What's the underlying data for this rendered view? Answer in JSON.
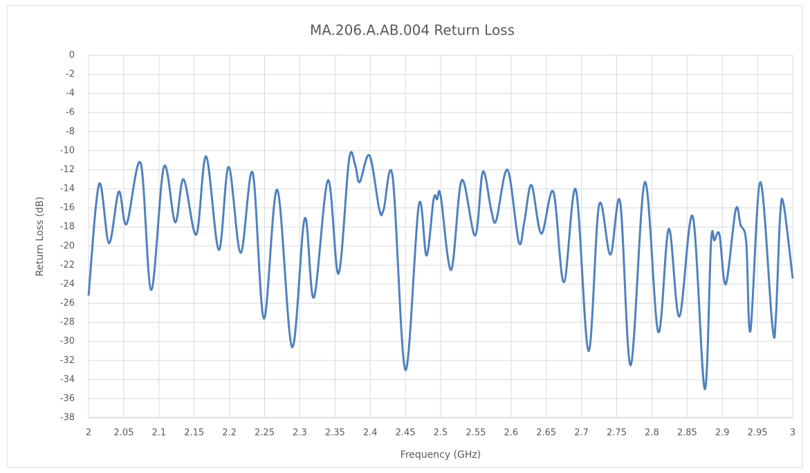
{
  "chart_data": {
    "type": "line",
    "title": "MA.206.A.AB.004 Return Loss",
    "xlabel": "Frequency (GHz)",
    "ylabel": "Return Loss (dB)",
    "x": [
      2.0,
      2.015,
      2.029,
      2.043,
      2.054,
      2.074,
      2.089,
      2.107,
      2.123,
      2.135,
      2.153,
      2.167,
      2.185,
      2.199,
      2.216,
      2.233,
      2.249,
      2.268,
      2.289,
      2.307,
      2.32,
      2.34,
      2.355,
      2.37,
      2.379,
      2.385,
      2.399,
      2.413,
      2.419,
      2.432,
      2.45,
      2.469,
      2.48,
      2.49,
      2.495,
      2.5,
      2.515,
      2.53,
      2.549,
      2.56,
      2.572,
      2.579,
      2.595,
      2.611,
      2.619,
      2.629,
      2.643,
      2.66,
      2.675,
      2.692,
      2.71,
      2.725,
      2.741,
      2.755,
      2.77,
      2.79,
      2.809,
      2.824,
      2.839,
      2.858,
      2.875,
      2.884,
      2.889,
      2.896,
      2.905,
      2.919,
      2.926,
      2.934,
      2.94,
      2.954,
      2.971,
      2.976,
      2.982,
      2.987,
      3.0
    ],
    "series": [
      {
        "name": "Return Loss",
        "color": "#4f81bd",
        "values": [
          -25.2,
          -13.5,
          -19.7,
          -14.3,
          -17.7,
          -11.3,
          -24.6,
          -11.7,
          -17.5,
          -13.0,
          -18.8,
          -10.6,
          -20.4,
          -11.7,
          -20.7,
          -12.3,
          -27.6,
          -14.1,
          -30.6,
          -17.1,
          -25.4,
          -13.1,
          -22.9,
          -10.9,
          -11.6,
          -13.3,
          -10.5,
          -16.2,
          -16.2,
          -12.8,
          -33.0,
          -15.7,
          -21.0,
          -15.1,
          -15.1,
          -14.7,
          -22.5,
          -13.1,
          -18.9,
          -12.2,
          -16.3,
          -17.3,
          -12.0,
          -19.6,
          -17.4,
          -13.6,
          -18.7,
          -14.3,
          -23.8,
          -14.1,
          -31.0,
          -15.7,
          -20.9,
          -15.4,
          -32.5,
          -13.3,
          -29.0,
          -18.2,
          -27.4,
          -16.9,
          -35.0,
          -19.6,
          -19.4,
          -18.8,
          -24.0,
          -16.2,
          -17.8,
          -19.6,
          -28.9,
          -13.3,
          -28.3,
          -27.6,
          -17.0,
          -15.6,
          -23.4
        ]
      }
    ],
    "xlim": [
      2,
      3
    ],
    "xticks": [
      2,
      2.05,
      2.1,
      2.15,
      2.2,
      2.25,
      2.3,
      2.35,
      2.4,
      2.45,
      2.5,
      2.55,
      2.6,
      2.65,
      2.7,
      2.75,
      2.8,
      2.85,
      2.9,
      2.95,
      3
    ],
    "ylim": [
      -38,
      0
    ],
    "yticks": [
      0,
      -2,
      -4,
      -6,
      -8,
      -10,
      -12,
      -14,
      -16,
      -18,
      -20,
      -22,
      -24,
      -26,
      -28,
      -30,
      -32,
      -34,
      -36,
      -38
    ],
    "grid": true
  }
}
